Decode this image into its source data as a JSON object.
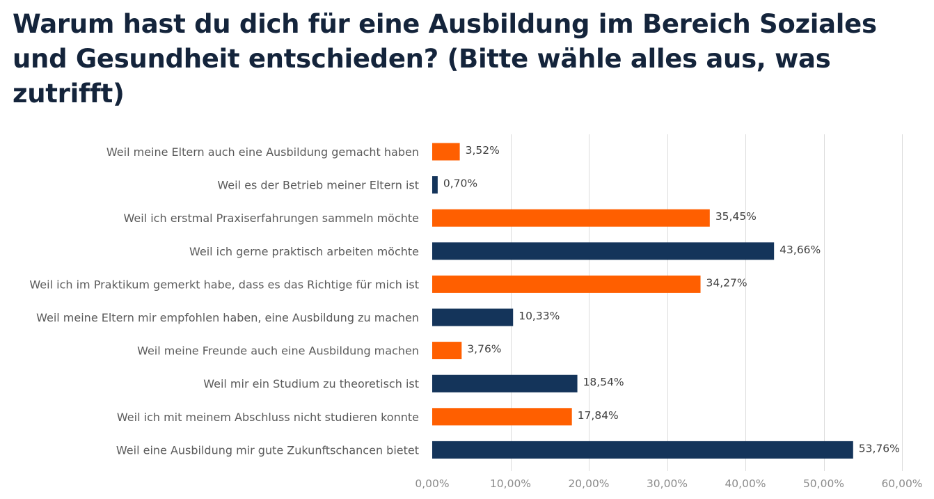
{
  "title": "Warum hast du dich für eine Ausbildung im Bereich Soziales und Gesundheit entschieden? (Bitte wähle alles aus, was zutrifft)",
  "chart_data": {
    "type": "bar",
    "orientation": "horizontal",
    "title": "Warum hast du dich für eine Ausbildung im Bereich Soziales und Gesundheit entschieden? (Bitte wähle alles aus, was zutrifft)",
    "categories": [
      "Weil meine Eltern auch eine Ausbildung gemacht haben",
      "Weil es der Betrieb meiner Eltern ist",
      "Weil ich erstmal Praxiserfahrungen sammeln möchte",
      "Weil ich gerne praktisch arbeiten möchte",
      "Weil ich im Praktikum gemerkt habe, dass es das Richtige für mich ist",
      "Weil meine Eltern mir empfohlen haben, eine Ausbildung zu machen",
      "Weil meine Freunde auch eine Ausbildung machen",
      "Weil mir ein Studium zu theoretisch ist",
      "Weil ich mit meinem Abschluss nicht studieren konnte",
      "Weil eine Ausbildung mir gute Zukunftschancen bietet"
    ],
    "values": [
      3.52,
      0.7,
      35.45,
      43.66,
      34.27,
      10.33,
      3.76,
      18.54,
      17.84,
      53.76
    ],
    "value_labels": [
      "3,52%",
      "0,70%",
      "35,45%",
      "43,66%",
      "34,27%",
      "10,33%",
      "3,76%",
      "18,54%",
      "17,84%",
      "53,76%"
    ],
    "bar_colors": [
      "#ff5f00",
      "#14345a",
      "#ff5f00",
      "#14345a",
      "#ff5f00",
      "#14345a",
      "#ff5f00",
      "#14345a",
      "#ff5f00",
      "#14345a"
    ],
    "xlim": [
      0,
      60
    ],
    "x_ticks": [
      0,
      10,
      20,
      30,
      40,
      50,
      60
    ],
    "x_tick_labels": [
      "0,00%",
      "10,00%",
      "20,00%",
      "30,00%",
      "40,00%",
      "50,00%",
      "60,00%"
    ],
    "xlabel": "",
    "ylabel": "",
    "grid": "vertical",
    "legend": "none"
  }
}
